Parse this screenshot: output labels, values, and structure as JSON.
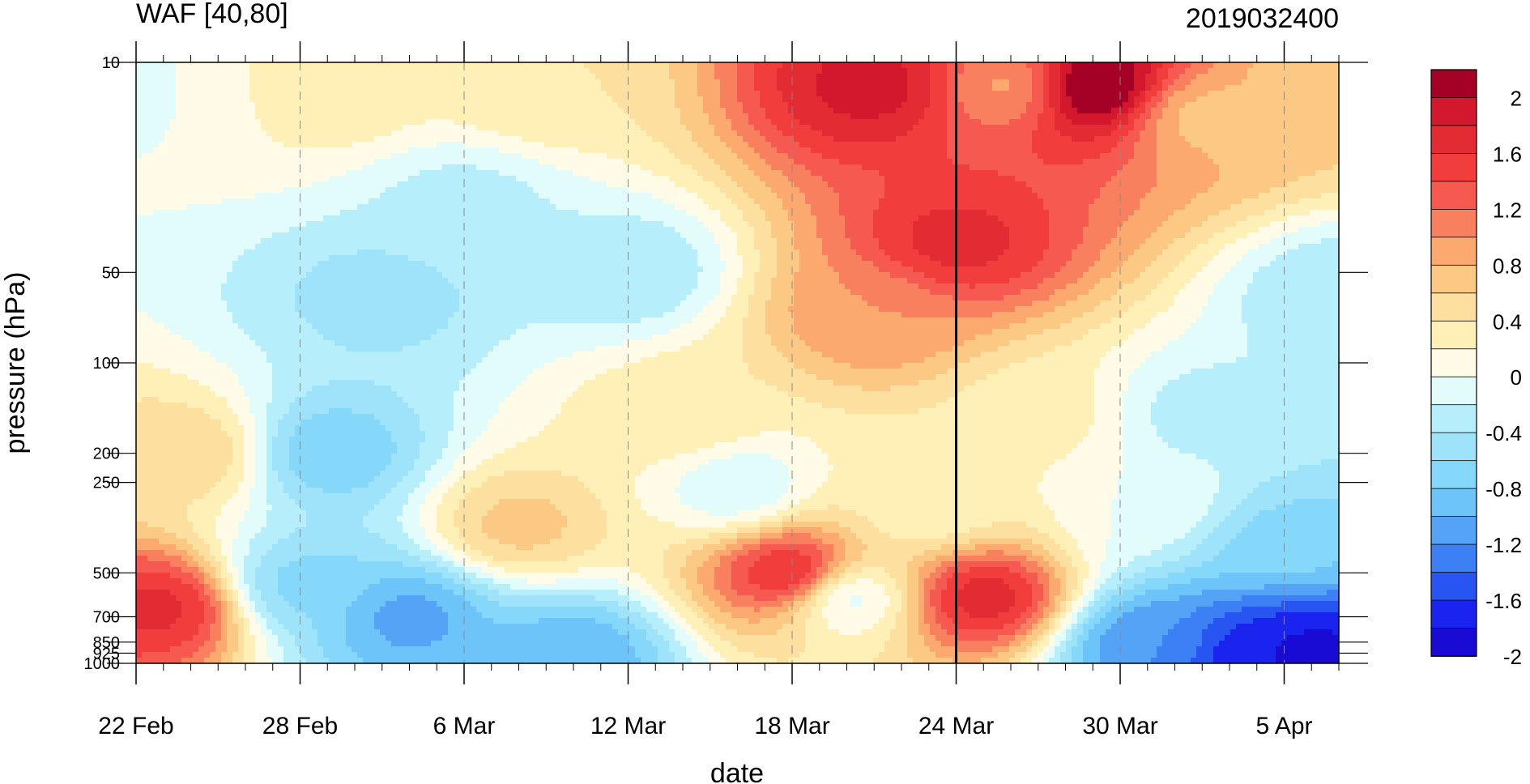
{
  "chart_data": {
    "type": "contour",
    "title_left": "WAF [40,80]",
    "title_right": "2019032400",
    "xlabel": "date",
    "ylabel": "pressure (hPa)",
    "x_ticks": [
      "22 Feb",
      "28 Feb",
      "6 Mar",
      "12 Mar",
      "18 Mar",
      "24 Mar",
      "30 Mar",
      "5 Apr"
    ],
    "x_range": [
      "22 Feb",
      "7 Apr"
    ],
    "marked_date": "24 Mar",
    "y_scale": "log",
    "y_ticks": [
      10,
      50,
      100,
      200,
      250,
      500,
      700,
      850,
      925,
      1000
    ],
    "y_range": [
      1000,
      10
    ],
    "colorbar": {
      "labels": [
        "2",
        "1.6",
        "1.2",
        "0.8",
        "0.4",
        "0",
        "-0.4",
        "-0.8",
        "-1.2",
        "-1.6",
        "-2"
      ],
      "levels": [
        -2.2,
        -2.0,
        -1.8,
        -1.6,
        -1.4,
        -1.2,
        -1.0,
        -0.8,
        -0.6,
        -0.4,
        -0.2,
        0,
        0.2,
        0.4,
        0.6,
        0.8,
        1.0,
        1.2,
        1.4,
        1.6,
        1.8,
        2.0,
        2.2
      ],
      "colors": [
        "#1a0bd4",
        "#1b24ef",
        "#2855f2",
        "#3d80f5",
        "#54a3f7",
        "#6cc4f9",
        "#85d8fa",
        "#9fe3fb",
        "#b7eefb",
        "#e2fbfb",
        "#fffbe6",
        "#fff0b7",
        "#fde0a0",
        "#fcc985",
        "#fba96f",
        "#f9805e",
        "#f6594f",
        "#f23d3d",
        "#e22b32",
        "#d3172d",
        "#a50026"
      ]
    },
    "features": [
      {
        "date": "29 Mar",
        "pressure": 12,
        "value": 2.2
      },
      {
        "date": "21 Mar",
        "pressure": 12,
        "value": 1.7
      },
      {
        "date": "24 Mar",
        "pressure": 40,
        "value": 1.5
      },
      {
        "date": "23 Feb",
        "pressure": 650,
        "value": 1.5
      },
      {
        "date": "18 Mar",
        "pressure": 500,
        "value": 1.6
      },
      {
        "date": "25 Mar",
        "pressure": 600,
        "value": 1.6
      },
      {
        "date": "21 Mar",
        "pressure": 70,
        "value": 0.8
      },
      {
        "date": "2 Apr",
        "pressure": 15,
        "value": 0.5
      },
      {
        "date": "24 Feb",
        "pressure": 200,
        "value": 0.4
      },
      {
        "date": "8 Mar",
        "pressure": 350,
        "value": 0.5
      },
      {
        "date": "24 Feb",
        "pressure": 12,
        "value": 0.1
      },
      {
        "date": "29 Feb",
        "pressure": 12,
        "value": 0.2
      },
      {
        "date": "23 Mar",
        "pressure": 300,
        "value": 0.0
      },
      {
        "date": "31 Mar",
        "pressure": 300,
        "value": -0.2
      },
      {
        "date": "12 Mar",
        "pressure": 50,
        "value": -0.6
      },
      {
        "date": "1 Mar",
        "pressure": 200,
        "value": -1.0
      },
      {
        "date": "28 Feb",
        "pressure": 550,
        "value": -0.9
      },
      {
        "date": "4 Mar",
        "pressure": 700,
        "value": -1.3
      },
      {
        "date": "10 Mar",
        "pressure": 930,
        "value": -1.2
      },
      {
        "date": "23 Feb",
        "pressure": 12,
        "value": -0.5
      },
      {
        "date": "5 Apr",
        "pressure": 400,
        "value": -0.9
      },
      {
        "date": "4 Apr",
        "pressure": 950,
        "value": -2.0
      },
      {
        "date": "6 Apr",
        "pressure": 930,
        "value": -2.1
      },
      {
        "date": "31 Mar",
        "pressure": 850,
        "value": -1.4
      },
      {
        "date": "20 Mar",
        "pressure": 600,
        "value": -0.4
      },
      {
        "date": "16 Mar",
        "pressure": 260,
        "value": -0.4
      },
      {
        "date": "14 Mar",
        "pressure": 150,
        "value": 0.2
      },
      {
        "date": "3 Mar",
        "pressure": 60,
        "value": -0.7
      },
      {
        "date": "6 Mar",
        "pressure": 30,
        "value": -0.5
      },
      {
        "date": "9 Mar",
        "pressure": 12,
        "value": 0.2
      },
      {
        "date": "26 Mar",
        "pressure": 12,
        "value": 0.7
      },
      {
        "date": "27 Mar",
        "pressure": 150,
        "value": 0.1
      },
      {
        "date": "2 Apr",
        "pressure": 150,
        "value": -0.5
      },
      {
        "date": "7 Apr",
        "pressure": 60,
        "value": -0.6
      },
      {
        "date": "7 Apr",
        "pressure": 12,
        "value": 0.4
      }
    ]
  }
}
